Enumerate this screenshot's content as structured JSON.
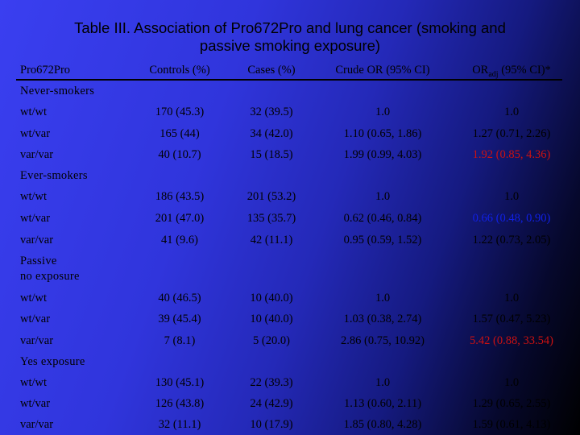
{
  "title": {
    "line1": "Table III. Association of Pro672Pro and lung cancer (smoking and",
    "line2": "passive smoking exposure)"
  },
  "headers": {
    "col0": "Pro672Pro",
    "col1": "Controls (%)",
    "col2": "Cases (%)",
    "col3": "Crude OR (95% CI)",
    "col4_main": "OR",
    "col4_sub": "adj",
    "col4_rest": " (95% CI)*"
  },
  "groups": {
    "never": "Never-smokers",
    "ever": "Ever-smokers",
    "passive_line1": "Passive",
    "passive_line2": "no exposure",
    "yes": "Yes exposure"
  },
  "colors": {
    "red": "#cc1111",
    "blue": "#1020e6"
  },
  "rows": [
    {
      "genotype": "wt/wt",
      "controls": "170 (45.3)",
      "cases": "32 (39.5)",
      "crude": "1.0",
      "adj": "1.0"
    },
    {
      "genotype": "wt/var",
      "controls": "165 (44)",
      "cases": "34 (42.0)",
      "crude": "1.10 (0.65, 1.86)",
      "adj": "1.27 (0.71, 2.26)"
    },
    {
      "genotype": "var/var",
      "controls": "40 (10.7)",
      "cases": "15 (18.5)",
      "crude": "1.99 (0.99, 4.03)",
      "adj": "1.92 (0.85, 4.36)"
    },
    {
      "genotype": "wt/wt",
      "controls": "186 (43.5)",
      "cases": "201 (53.2)",
      "crude": "1.0",
      "adj": "1.0"
    },
    {
      "genotype": "wt/var",
      "controls": "201 (47.0)",
      "cases": "135 (35.7)",
      "crude": "0.62 (0.46, 0.84)",
      "adj": "0.66 (0.48, 0.90)"
    },
    {
      "genotype": "var/var",
      "controls": "41 (9.6)",
      "cases": "42 (11.1)",
      "crude": "0.95 (0.59, 1.52)",
      "adj": "1.22 (0.73, 2.05)"
    },
    {
      "genotype": "wt/wt",
      "controls": "40 (46.5)",
      "cases": "10 (40.0)",
      "crude": "1.0",
      "adj": "1.0"
    },
    {
      "genotype": "wt/var",
      "controls": "39 (45.4)",
      "cases": "10 (40.0)",
      "crude": "1.03 (0.38, 2.74)",
      "adj": "1.57 (0.47, 5.23)"
    },
    {
      "genotype": "var/var",
      "controls": "7 (8.1)",
      "cases": "5 (20.0)",
      "crude": "2.86 (0.75, 10.92)",
      "adj": "5.42 (0.88, 33.54)"
    },
    {
      "genotype": "wt/wt",
      "controls": "130 (45.1)",
      "cases": "22 (39.3)",
      "crude": "1.0",
      "adj": "1.0"
    },
    {
      "genotype": "wt/var",
      "controls": "126 (43.8)",
      "cases": "24 (42.9)",
      "crude": "1.13 (0.60, 2.11)",
      "adj": "1.29 (0.65, 2.55)"
    },
    {
      "genotype": "var/var",
      "controls": "32 (11.1)",
      "cases": "10 (17.9)",
      "crude": "1.85 (0.80, 4.28)",
      "adj": "1.59 (0.61, 4.13)"
    }
  ]
}
